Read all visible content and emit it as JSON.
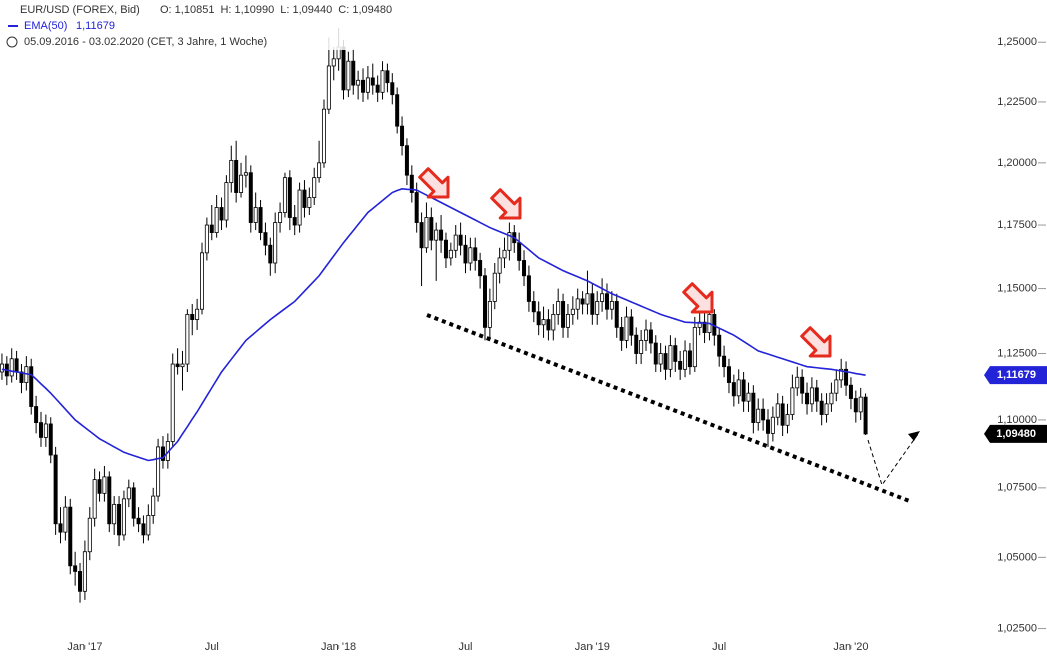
{
  "chart_data": {
    "type": "candlestick",
    "title": "EUR/USD (FOREX, Bid)",
    "ohlc_text": [
      "O: 1,10851",
      "H: 1,10990",
      "L: 1,09440",
      "C: 1,09480"
    ],
    "subtitle": "05.09.2016 - 03.02.2020  (CET, 3 Jahre, 1 Woche)",
    "log_scale": true,
    "xlim": [
      -0.4,
      202.5
    ],
    "xticks": [
      {
        "value": 17,
        "label": "Jan '17"
      },
      {
        "value": 43,
        "label": "Jul"
      },
      {
        "value": 69,
        "label": "Jan '18"
      },
      {
        "value": 95,
        "label": "Jul"
      },
      {
        "value": 121,
        "label": "Jan '19"
      },
      {
        "value": 147,
        "label": "Jul"
      },
      {
        "value": 174,
        "label": "Jan '20"
      }
    ],
    "ylim": [
      1.02,
      1.268
    ],
    "yticks": [
      {
        "value": 1.025,
        "label": "1,02500"
      },
      {
        "value": 1.05,
        "label": "1,05000"
      },
      {
        "value": 1.075,
        "label": "1,07500"
      },
      {
        "value": 1.1,
        "label": "1,10000"
      },
      {
        "value": 1.125,
        "label": "1,12500"
      },
      {
        "value": 1.15,
        "label": "1,15000"
      },
      {
        "value": 1.175,
        "label": "1,17500"
      },
      {
        "value": 1.2,
        "label": "1,20000"
      },
      {
        "value": 1.225,
        "label": "1,22500"
      },
      {
        "value": 1.25,
        "label": "1,25000"
      }
    ],
    "candles": {
      "name": "EUR/USD",
      "up_color": "#ffffff",
      "down_color": "#000000",
      "open": [
        1.118,
        1.121,
        1.1165,
        1.123,
        1.118,
        1.114,
        1.12,
        1.105,
        1.099,
        1.0935,
        1.0985,
        1.087,
        1.062,
        1.059,
        1.068,
        1.047,
        1.045,
        1.038,
        1.052,
        1.064,
        1.078,
        1.073,
        1.079,
        1.062,
        1.069,
        1.058,
        1.071,
        1.075,
        1.064,
        1.062,
        1.058,
        1.065,
        1.072,
        1.09,
        1.085,
        1.092,
        1.121,
        1.12,
        1.121,
        1.14,
        1.138,
        1.142,
        1.164,
        1.175,
        1.172,
        1.182,
        1.177,
        1.192,
        1.201,
        1.188,
        1.195,
        1.196,
        1.176,
        1.182,
        1.172,
        1.167,
        1.16,
        1.176,
        1.18,
        1.194,
        1.178,
        1.175,
        1.189,
        1.182,
        1.186,
        1.194,
        1.2,
        1.222,
        1.24,
        1.243,
        1.248,
        1.23,
        1.242,
        1.232,
        1.234,
        1.229,
        1.235,
        1.232,
        1.229,
        1.238,
        1.233,
        1.228,
        1.215,
        1.207,
        1.195,
        1.188,
        1.176,
        1.166,
        1.178,
        1.169,
        1.173,
        1.169,
        1.162,
        1.165,
        1.171,
        1.167,
        1.16,
        1.166,
        1.161,
        1.155,
        1.135,
        1.145,
        1.156,
        1.162,
        1.165,
        1.172,
        1.168,
        1.161,
        1.155,
        1.145,
        1.141,
        1.136,
        1.138,
        1.134,
        1.14,
        1.145,
        1.135,
        1.14,
        1.142,
        1.146,
        1.144,
        1.148,
        1.14,
        1.145,
        1.148,
        1.142,
        1.145,
        1.135,
        1.13,
        1.139,
        1.132,
        1.125,
        1.13,
        1.134,
        1.129,
        1.121,
        1.125,
        1.119,
        1.128,
        1.122,
        1.119,
        1.126,
        1.12,
        1.135,
        1.137,
        1.133,
        1.14,
        1.132,
        1.124,
        1.12,
        1.114,
        1.109,
        1.115,
        1.107,
        1.11,
        1.099,
        1.104,
        1.1,
        1.095,
        1.101,
        1.106,
        1.098,
        1.102,
        1.112,
        1.116,
        1.11,
        1.106,
        1.112,
        1.107,
        1.102,
        1.106,
        1.11,
        1.115,
        1.119,
        1.113,
        1.108,
        1.103,
        1.10851
      ],
      "high": [
        1.125,
        1.124,
        1.127,
        1.126,
        1.121,
        1.124,
        1.123,
        1.109,
        1.103,
        1.102,
        1.101,
        1.09,
        1.068,
        1.072,
        1.071,
        1.052,
        1.048,
        1.056,
        1.068,
        1.082,
        1.081,
        1.083,
        1.081,
        1.072,
        1.072,
        1.074,
        1.078,
        1.077,
        1.068,
        1.065,
        1.069,
        1.075,
        1.093,
        1.094,
        1.095,
        1.125,
        1.127,
        1.126,
        1.142,
        1.144,
        1.146,
        1.168,
        1.178,
        1.183,
        1.187,
        1.186,
        1.195,
        1.207,
        1.209,
        1.2,
        1.203,
        1.199,
        1.188,
        1.185,
        1.176,
        1.17,
        1.18,
        1.184,
        1.196,
        1.197,
        1.183,
        1.192,
        1.193,
        1.19,
        1.198,
        1.209,
        1.226,
        1.252,
        1.248,
        1.256,
        1.251,
        1.246,
        1.247,
        1.238,
        1.239,
        1.24,
        1.241,
        1.236,
        1.242,
        1.241,
        1.237,
        1.231,
        1.219,
        1.21,
        1.199,
        1.192,
        1.18,
        1.184,
        1.182,
        1.176,
        1.179,
        1.172,
        1.168,
        1.175,
        1.176,
        1.171,
        1.17,
        1.17,
        1.164,
        1.158,
        1.15,
        1.16,
        1.166,
        1.17,
        1.176,
        1.175,
        1.172,
        1.165,
        1.159,
        1.149,
        1.145,
        1.143,
        1.142,
        1.144,
        1.15,
        1.148,
        1.144,
        1.147,
        1.15,
        1.149,
        1.157,
        1.152,
        1.149,
        1.154,
        1.152,
        1.149,
        1.148,
        1.139,
        1.143,
        1.142,
        1.135,
        1.134,
        1.138,
        1.137,
        1.132,
        1.129,
        1.128,
        1.132,
        1.131,
        1.126,
        1.13,
        1.129,
        1.139,
        1.141,
        1.141,
        1.143,
        1.142,
        1.135,
        1.128,
        1.123,
        1.117,
        1.119,
        1.118,
        1.114,
        1.113,
        1.108,
        1.108,
        1.104,
        1.105,
        1.11,
        1.109,
        1.106,
        1.117,
        1.12,
        1.119,
        1.114,
        1.116,
        1.115,
        1.11,
        1.11,
        1.114,
        1.119,
        1.123,
        1.122,
        1.116,
        1.111,
        1.112,
        1.1099
      ],
      "low": [
        1.115,
        1.113,
        1.114,
        1.115,
        1.11,
        1.111,
        1.102,
        1.095,
        1.09,
        1.09,
        1.084,
        1.058,
        1.055,
        1.056,
        1.044,
        1.04,
        1.034,
        1.035,
        1.049,
        1.061,
        1.07,
        1.07,
        1.059,
        1.058,
        1.054,
        1.056,
        1.068,
        1.061,
        1.059,
        1.055,
        1.056,
        1.062,
        1.07,
        1.082,
        1.082,
        1.09,
        1.117,
        1.111,
        1.118,
        1.132,
        1.134,
        1.14,
        1.161,
        1.169,
        1.17,
        1.173,
        1.174,
        1.188,
        1.184,
        1.186,
        1.19,
        1.172,
        1.173,
        1.169,
        1.163,
        1.155,
        1.156,
        1.172,
        1.178,
        1.173,
        1.171,
        1.172,
        1.178,
        1.179,
        1.183,
        1.192,
        1.198,
        1.22,
        1.234,
        1.238,
        1.226,
        1.227,
        1.228,
        1.226,
        1.225,
        1.226,
        1.228,
        1.225,
        1.226,
        1.229,
        1.224,
        1.212,
        1.203,
        1.191,
        1.184,
        1.172,
        1.151,
        1.164,
        1.165,
        1.153,
        1.164,
        1.158,
        1.159,
        1.162,
        1.163,
        1.156,
        1.157,
        1.157,
        1.15,
        1.13,
        1.131,
        1.142,
        1.152,
        1.158,
        1.161,
        1.164,
        1.157,
        1.151,
        1.141,
        1.137,
        1.132,
        1.131,
        1.13,
        1.13,
        1.136,
        1.131,
        1.131,
        1.136,
        1.138,
        1.14,
        1.14,
        1.136,
        1.136,
        1.141,
        1.138,
        1.138,
        1.131,
        1.126,
        1.127,
        1.128,
        1.121,
        1.121,
        1.126,
        1.125,
        1.118,
        1.118,
        1.115,
        1.116,
        1.118,
        1.115,
        1.116,
        1.117,
        1.118,
        1.132,
        1.129,
        1.13,
        1.128,
        1.12,
        1.116,
        1.11,
        1.105,
        1.106,
        1.103,
        1.103,
        1.095,
        1.096,
        1.096,
        1.09,
        1.092,
        1.098,
        1.094,
        1.095,
        1.1,
        1.109,
        1.106,
        1.102,
        1.103,
        1.103,
        1.098,
        1.099,
        1.103,
        1.107,
        1.112,
        1.109,
        1.104,
        1.099,
        1.1,
        1.0944
      ],
      "close": [
        1.121,
        1.1165,
        1.123,
        1.118,
        1.114,
        1.12,
        1.105,
        1.099,
        1.0935,
        1.0985,
        1.087,
        1.062,
        1.059,
        1.068,
        1.047,
        1.045,
        1.038,
        1.052,
        1.064,
        1.078,
        1.073,
        1.079,
        1.062,
        1.069,
        1.058,
        1.071,
        1.075,
        1.064,
        1.062,
        1.058,
        1.065,
        1.072,
        1.09,
        1.085,
        1.092,
        1.121,
        1.12,
        1.121,
        1.14,
        1.138,
        1.142,
        1.164,
        1.175,
        1.172,
        1.182,
        1.177,
        1.192,
        1.201,
        1.188,
        1.195,
        1.196,
        1.176,
        1.182,
        1.172,
        1.167,
        1.16,
        1.176,
        1.18,
        1.194,
        1.178,
        1.175,
        1.189,
        1.182,
        1.186,
        1.194,
        1.2,
        1.222,
        1.24,
        1.243,
        1.248,
        1.23,
        1.242,
        1.232,
        1.234,
        1.229,
        1.235,
        1.232,
        1.229,
        1.238,
        1.233,
        1.228,
        1.215,
        1.207,
        1.195,
        1.188,
        1.176,
        1.166,
        1.178,
        1.169,
        1.173,
        1.169,
        1.162,
        1.165,
        1.171,
        1.167,
        1.16,
        1.166,
        1.161,
        1.155,
        1.135,
        1.145,
        1.156,
        1.162,
        1.165,
        1.172,
        1.168,
        1.161,
        1.155,
        1.145,
        1.141,
        1.136,
        1.138,
        1.134,
        1.14,
        1.145,
        1.135,
        1.14,
        1.142,
        1.146,
        1.144,
        1.148,
        1.14,
        1.145,
        1.148,
        1.142,
        1.145,
        1.135,
        1.13,
        1.139,
        1.132,
        1.125,
        1.13,
        1.134,
        1.129,
        1.121,
        1.125,
        1.119,
        1.128,
        1.122,
        1.119,
        1.126,
        1.12,
        1.135,
        1.137,
        1.133,
        1.14,
        1.132,
        1.124,
        1.12,
        1.114,
        1.109,
        1.115,
        1.107,
        1.11,
        1.099,
        1.104,
        1.1,
        1.095,
        1.101,
        1.106,
        1.098,
        1.102,
        1.112,
        1.116,
        1.11,
        1.106,
        1.112,
        1.107,
        1.102,
        1.106,
        1.11,
        1.115,
        1.119,
        1.113,
        1.108,
        1.103,
        1.10851,
        1.0948
      ]
    },
    "series": [
      {
        "name": "EMA(50)",
        "legend_value": "1,11679",
        "color": "#2323d8",
        "values": [
          1.119,
          1.1187,
          1.1183,
          1.118,
          1.1177,
          1.1173,
          1.117,
          1.1153,
          1.1135,
          1.1118,
          1.11,
          1.108,
          1.106,
          1.104,
          1.102,
          1.1,
          1.0986,
          1.0972,
          1.0958,
          1.0944,
          1.093,
          1.092,
          1.091,
          1.09,
          1.089,
          1.088,
          1.0874,
          1.0868,
          1.0862,
          1.0856,
          1.085,
          1.0853,
          1.0857,
          1.086,
          1.088,
          1.09,
          1.092,
          1.0948,
          1.0975,
          1.1003,
          1.103,
          1.106,
          1.109,
          1.112,
          1.115,
          1.118,
          1.1204,
          1.1228,
          1.1252,
          1.1276,
          1.13,
          1.1316,
          1.1332,
          1.1348,
          1.1364,
          1.138,
          1.1394,
          1.1408,
          1.1422,
          1.1436,
          1.145,
          1.147,
          1.149,
          1.151,
          1.153,
          1.155,
          1.1576,
          1.1602,
          1.1628,
          1.1654,
          1.168,
          1.1704,
          1.1728,
          1.1752,
          1.1776,
          1.18,
          1.1816,
          1.1832,
          1.1848,
          1.1864,
          1.188,
          1.1888,
          1.1895,
          1.1893,
          1.1892,
          1.189,
          1.188,
          1.187,
          1.186,
          1.185,
          1.184,
          1.183,
          1.182,
          1.181,
          1.18,
          1.179,
          1.178,
          1.177,
          1.176,
          1.175,
          1.174,
          1.1732,
          1.1724,
          1.1716,
          1.1708,
          1.17,
          1.1684,
          1.1668,
          1.1652,
          1.1636,
          1.162,
          1.161,
          1.16,
          1.159,
          1.158,
          1.157,
          1.1562,
          1.1554,
          1.1546,
          1.1538,
          1.153,
          1.152,
          1.151,
          1.15,
          1.149,
          1.148,
          1.1472,
          1.1464,
          1.1456,
          1.1448,
          1.144,
          1.1432,
          1.1424,
          1.1416,
          1.1408,
          1.14,
          1.1394,
          1.1388,
          1.1382,
          1.1376,
          1.137,
          1.1369,
          1.1368,
          1.1367,
          1.1366,
          1.1365,
          1.1356,
          1.1347,
          1.1338,
          1.1329,
          1.132,
          1.1308,
          1.1296,
          1.1284,
          1.1272,
          1.126,
          1.1254,
          1.1248,
          1.1242,
          1.1236,
          1.123,
          1.1224,
          1.1218,
          1.1212,
          1.1206,
          1.12,
          1.1198,
          1.1196,
          1.1194,
          1.1192,
          1.119,
          1.1187,
          1.1184,
          1.1181,
          1.1178,
          1.1174,
          1.1171,
          1.11679
        ]
      }
    ],
    "price_tags": [
      {
        "value": 1.11679,
        "label": "1,11679",
        "color": "#2323d8"
      },
      {
        "value": 1.0948,
        "label": "1,09480",
        "color": "#000000"
      }
    ]
  }
}
